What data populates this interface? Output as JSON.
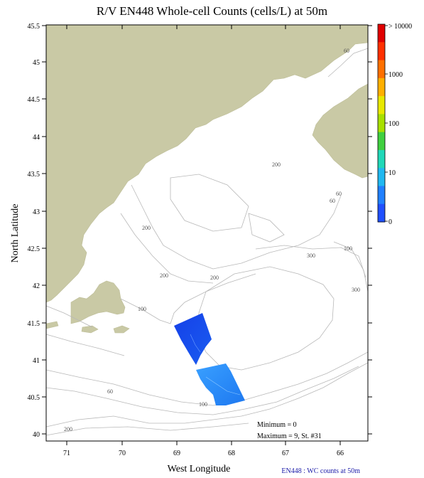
{
  "title": "R/V EN448 Whole-cell Counts (cells/L) at 50m",
  "x_axis": {
    "label": "West Longitude",
    "ticks": [
      "71",
      "70",
      "69",
      "68",
      "67",
      "66"
    ]
  },
  "y_axis": {
    "label": "North Latitude",
    "ticks": [
      "45.5",
      "45",
      "44.5",
      "44",
      "43.5",
      "43",
      "42.5",
      "42",
      "41.5",
      "41",
      "40.5",
      "40"
    ]
  },
  "colorbar": {
    "labels": [
      "> 10000",
      "1000",
      "100",
      "10",
      "0"
    ],
    "colors": [
      "#e00000",
      "#ff3000",
      "#ff7000",
      "#ffb000",
      "#e8e800",
      "#a8e000",
      "#40d040",
      "#20d8b8",
      "#20b8f0",
      "#2080ff",
      "#2050ff"
    ]
  },
  "contour_labels": [
    "60",
    "60",
    "60",
    "200",
    "200",
    "200",
    "200",
    "300",
    "300",
    "100",
    "100",
    "100",
    "60",
    "200"
  ],
  "stats": {
    "minimum": "Minimum = 0",
    "maximum": "Maximum = 9, St. #31"
  },
  "footer": "EN448 : WC counts at 50m",
  "colors": {
    "land": "#c9c9a5",
    "contour": "#b8b8b8",
    "frame": "#000000"
  }
}
